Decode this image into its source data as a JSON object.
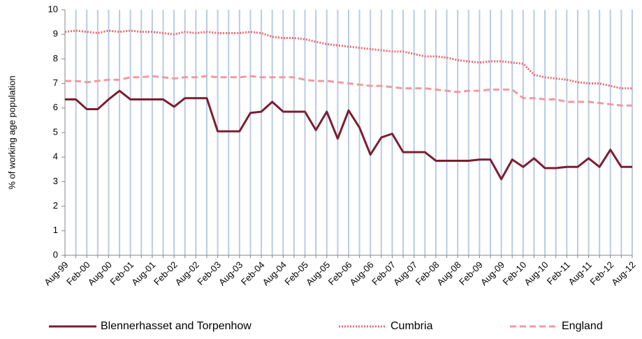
{
  "chart_data": {
    "type": "line",
    "y_label": "% of working age population",
    "categories": [
      "Aug-99",
      null,
      "Feb-00",
      null,
      "Aug-00",
      null,
      "Feb-01",
      null,
      "Aug-01",
      null,
      "Feb-02",
      null,
      "Aug-02",
      null,
      "Feb-03",
      null,
      "Aug-03",
      null,
      "Feb-04",
      null,
      "Aug-04",
      null,
      "Feb-05",
      null,
      "Aug-05",
      null,
      "Feb-06",
      null,
      "Aug-06",
      null,
      "Feb-07",
      null,
      "Aug-07",
      null,
      "Feb-08",
      null,
      "Aug-08",
      null,
      "Feb-09",
      null,
      "Aug-09",
      null,
      "Feb-10",
      null,
      "Aug-10",
      null,
      "Feb-11",
      null,
      "Aug-11",
      null,
      "Feb-12",
      null,
      "Aug-12"
    ],
    "series": [
      {
        "name": "Blennerhasset and Torpenhow",
        "color": "#7b1f2f",
        "dash": "solid",
        "values": [
          6.35,
          6.35,
          5.95,
          5.95,
          6.35,
          6.7,
          6.35,
          6.35,
          6.35,
          6.35,
          6.05,
          6.4,
          6.4,
          6.4,
          5.05,
          5.05,
          5.05,
          5.8,
          5.85,
          6.25,
          5.85,
          5.85,
          5.85,
          5.1,
          5.85,
          4.75,
          5.9,
          5.2,
          4.1,
          4.8,
          4.95,
          4.2,
          4.2,
          4.2,
          3.85,
          3.85,
          3.85,
          3.85,
          3.9,
          3.9,
          3.1,
          3.9,
          3.6,
          3.95,
          3.55,
          3.55,
          3.6,
          3.6,
          3.95,
          3.6,
          4.3,
          3.6,
          3.6
        ]
      },
      {
        "name": "Cumbria",
        "color": "#ee6b73",
        "dash": "dotted",
        "values": [
          9.1,
          9.15,
          9.1,
          9.05,
          9.15,
          9.1,
          9.15,
          9.1,
          9.1,
          9.05,
          9.0,
          9.1,
          9.05,
          9.1,
          9.05,
          9.05,
          9.05,
          9.1,
          9.05,
          8.9,
          8.85,
          8.85,
          8.8,
          8.7,
          8.6,
          8.55,
          8.5,
          8.45,
          8.4,
          8.35,
          8.3,
          8.3,
          8.2,
          8.1,
          8.1,
          8.05,
          7.95,
          7.9,
          7.85,
          7.9,
          7.9,
          7.85,
          7.8,
          7.35,
          7.25,
          7.2,
          7.15,
          7.05,
          7.0,
          7.0,
          6.9,
          6.8,
          6.8
        ]
      },
      {
        "name": "England",
        "color": "#f29a9f",
        "dash": "dashed",
        "values": [
          7.1,
          7.1,
          7.05,
          7.1,
          7.15,
          7.15,
          7.25,
          7.25,
          7.3,
          7.25,
          7.2,
          7.25,
          7.25,
          7.3,
          7.25,
          7.25,
          7.25,
          7.3,
          7.25,
          7.25,
          7.25,
          7.25,
          7.15,
          7.1,
          7.1,
          7.05,
          7.0,
          6.95,
          6.9,
          6.9,
          6.85,
          6.8,
          6.8,
          6.8,
          6.75,
          6.7,
          6.65,
          6.7,
          6.7,
          6.75,
          6.75,
          6.75,
          6.4,
          6.4,
          6.35,
          6.35,
          6.25,
          6.25,
          6.25,
          6.2,
          6.15,
          6.1,
          6.1
        ]
      }
    ],
    "ylim": [
      0,
      10
    ],
    "yticks": [
      0,
      1,
      2,
      3,
      4,
      5,
      6,
      7,
      8,
      9,
      10
    ],
    "x_grid": true,
    "x_grid_color": "#b8cce4",
    "legend": "bottom"
  }
}
